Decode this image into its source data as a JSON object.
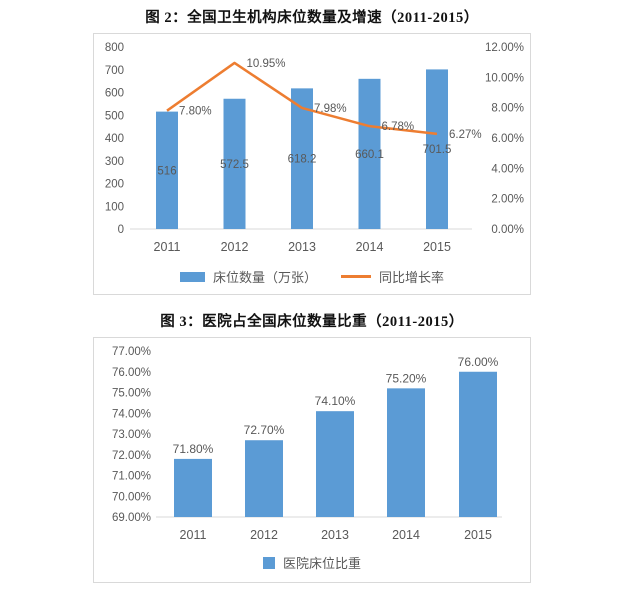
{
  "colors": {
    "bar_blue": "#5b9bd5",
    "line_orange": "#ed7d31",
    "axis_text": "#595959",
    "data_label_text": "#595959",
    "panel_border": "#d9d9d9",
    "axis_line": "#d9d9d9",
    "title_text": "#111111"
  },
  "chart_data": [
    {
      "type": "bar",
      "subtype": "combo-bar-line",
      "title": "图 2：全国卫生机构床位数量及增速（2011-2015）",
      "categories": [
        "2011",
        "2012",
        "2013",
        "2014",
        "2015"
      ],
      "series": [
        {
          "name": "床位数量（万张）",
          "type": "bar",
          "axis": "left",
          "values": [
            516,
            572.5,
            618.2,
            660.1,
            701.5
          ],
          "labels": [
            "516",
            "572.5",
            "618.2",
            "660.1",
            "701.5"
          ]
        },
        {
          "name": "同比增长率",
          "type": "line",
          "axis": "right",
          "values": [
            7.8,
            10.95,
            7.98,
            6.78,
            6.27
          ],
          "labels": [
            "7.80%",
            "10.95%",
            "7.98%",
            "6.78%",
            "6.27%"
          ]
        }
      ],
      "left_axis": {
        "min": 0,
        "max": 800,
        "step": 100,
        "ticks": [
          "800",
          "700",
          "600",
          "500",
          "400",
          "300",
          "200",
          "100",
          "0"
        ]
      },
      "right_axis": {
        "min": 0,
        "max": 12,
        "step": 2,
        "ticks": [
          "12.00%",
          "10.00%",
          "8.00%",
          "6.00%",
          "4.00%",
          "2.00%",
          "0.00%"
        ]
      },
      "grid": false,
      "legend_position": "bottom",
      "legend": [
        {
          "label": "床位数量（万张）",
          "swatch": "rect"
        },
        {
          "label": "同比增长率",
          "swatch": "line"
        }
      ]
    },
    {
      "type": "bar",
      "title": "图 3：医院占全国床位数量比重（2011-2015）",
      "categories": [
        "2011",
        "2012",
        "2013",
        "2014",
        "2015"
      ],
      "values": [
        71.8,
        72.7,
        74.1,
        75.2,
        76.0
      ],
      "labels": [
        "71.80%",
        "72.70%",
        "74.10%",
        "75.20%",
        "76.00%"
      ],
      "y_axis": {
        "min": 69,
        "max": 77,
        "step": 1,
        "ticks": [
          "77.00%",
          "76.00%",
          "75.00%",
          "74.00%",
          "73.00%",
          "72.00%",
          "71.00%",
          "70.00%",
          "69.00%"
        ]
      },
      "grid": false,
      "legend_position": "bottom",
      "legend": [
        {
          "label": "医院床位比重",
          "swatch": "rect"
        }
      ]
    }
  ]
}
